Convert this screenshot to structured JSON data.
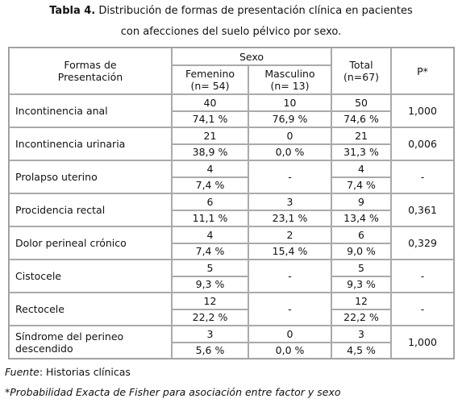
{
  "title": {
    "label": "Tabla 4.",
    "text": "Distribución de formas de presentación clínica en pacientes",
    "line2": "con afecciones del suelo pélvico por sexo."
  },
  "table": {
    "header": {
      "forms": [
        "Formas de",
        "Presentación"
      ],
      "sexo": "Sexo",
      "femenino": [
        "Femenino",
        "(n= 54)"
      ],
      "masculino": [
        "Masculino",
        "(n= 13)"
      ],
      "total": [
        "Total",
        "(n=67)"
      ],
      "p": "P*"
    },
    "rows": [
      {
        "label": "Incontinencia anal",
        "femenino": [
          "40",
          "74,1 %"
        ],
        "masculino": [
          "10",
          "76,9 %"
        ],
        "total": [
          "50",
          "74,6 %"
        ],
        "p": "1,000"
      },
      {
        "label": "Incontinencia urinaria",
        "femenino": [
          "21",
          "38,9 %"
        ],
        "masculino": [
          "0",
          "0,0 %"
        ],
        "total": [
          "21",
          "31,3 %"
        ],
        "p": "0,006"
      },
      {
        "label": "Prolapso uterino",
        "femenino": [
          "4",
          "7,4 %"
        ],
        "masculino": [
          "-"
        ],
        "total": [
          "4",
          "7,4 %"
        ],
        "p": "-"
      },
      {
        "label": "Procidencia rectal",
        "femenino": [
          "6",
          "11,1 %"
        ],
        "masculino": [
          "3",
          "23,1 %"
        ],
        "total": [
          "9",
          "13,4 %"
        ],
        "p": "0,361"
      },
      {
        "label": "Dolor perineal crónico",
        "femenino": [
          "4",
          "7,4 %"
        ],
        "masculino": [
          "2",
          "15,4 %"
        ],
        "total": [
          "6",
          "9,0 %"
        ],
        "p": "0,329"
      },
      {
        "label": "Cistocele",
        "femenino": [
          "5",
          "9,3 %"
        ],
        "masculino": [
          "-"
        ],
        "total": [
          "5",
          "9,3 %"
        ],
        "p": "-"
      },
      {
        "label": "Rectocele",
        "femenino": [
          "12",
          "22,2 %"
        ],
        "masculino": [
          "-"
        ],
        "total": [
          "12",
          "22,2 %"
        ],
        "p": "-"
      },
      {
        "label": "Síndrome del perineo descendido",
        "femenino": [
          "3",
          "5,6 %"
        ],
        "masculino": [
          "0",
          "0,0 %"
        ],
        "total": [
          "3",
          "4,5 %"
        ],
        "p": "1,000"
      }
    ]
  },
  "footer": {
    "source_label": "Fuente",
    "source_text": ": Historias clínicas",
    "note": "*Probabilidad Exacta de Fisher para asociación entre factor y sexo"
  }
}
